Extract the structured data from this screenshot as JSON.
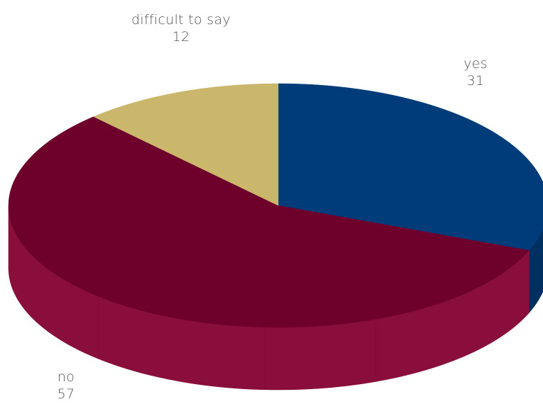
{
  "chart_data": {
    "type": "pie",
    "style": "3d",
    "labels": [
      "yes",
      "no",
      "difficult to say"
    ],
    "values": [
      31,
      57,
      12
    ],
    "colors": {
      "yes": "#003c7a",
      "no": "#6e002c",
      "difficult to say": "#cab76c"
    },
    "side_colors": {
      "yes": "#00305f",
      "no": "#8a0e3c",
      "difficult to say": "#a8944f"
    },
    "title": "",
    "legend": "none"
  },
  "labels": {
    "yes": {
      "name": "yes",
      "value": "31"
    },
    "no": {
      "name": "no",
      "value": "57"
    },
    "difficult": {
      "name": "difficult to say",
      "value": "12"
    }
  }
}
